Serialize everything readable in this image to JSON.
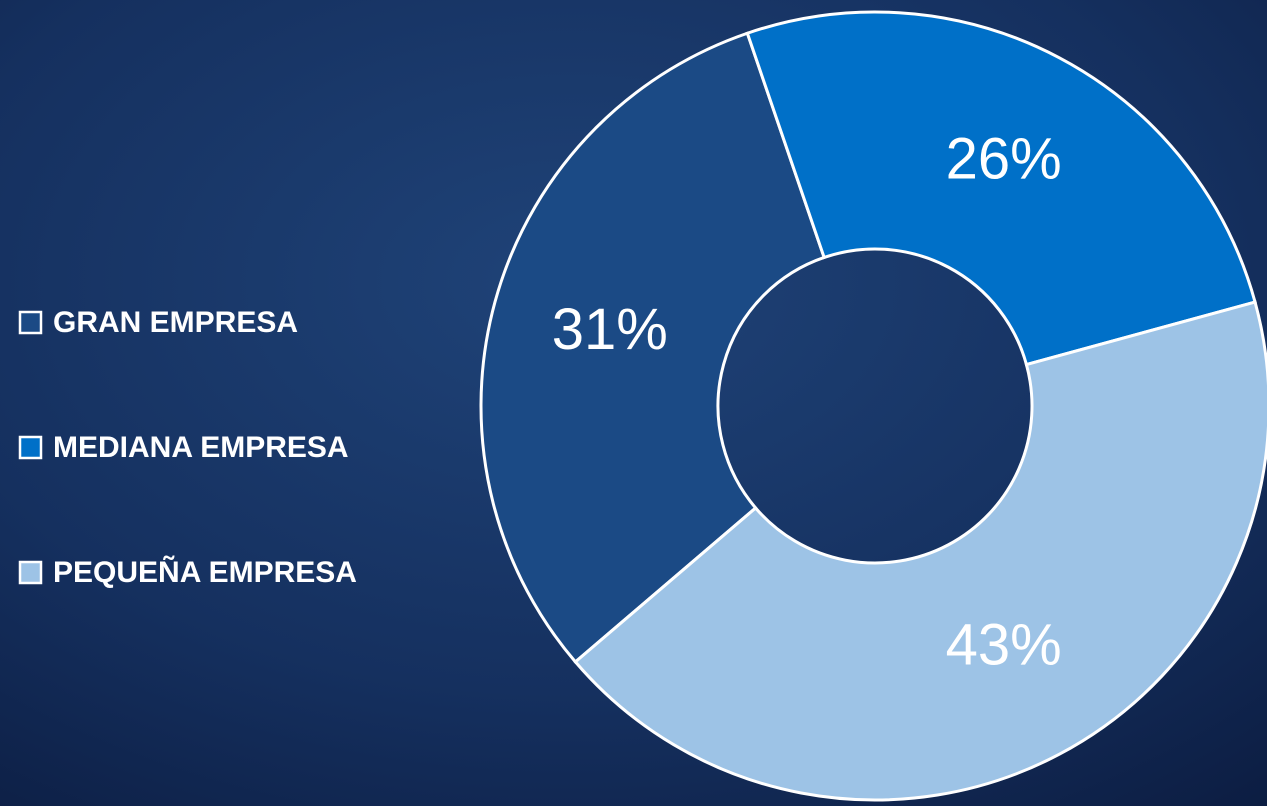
{
  "chart_data": {
    "type": "donut",
    "categories": [
      "GRAN EMPRESA",
      "MEDIANA EMPRESA",
      "PEQUEÑA EMPRESA"
    ],
    "values": [
      31,
      26,
      43
    ],
    "value_labels": [
      "31%",
      "26%",
      "43%"
    ],
    "colors": [
      "#1b4a85",
      "#0070c8",
      "#9dc3e6"
    ]
  }
}
